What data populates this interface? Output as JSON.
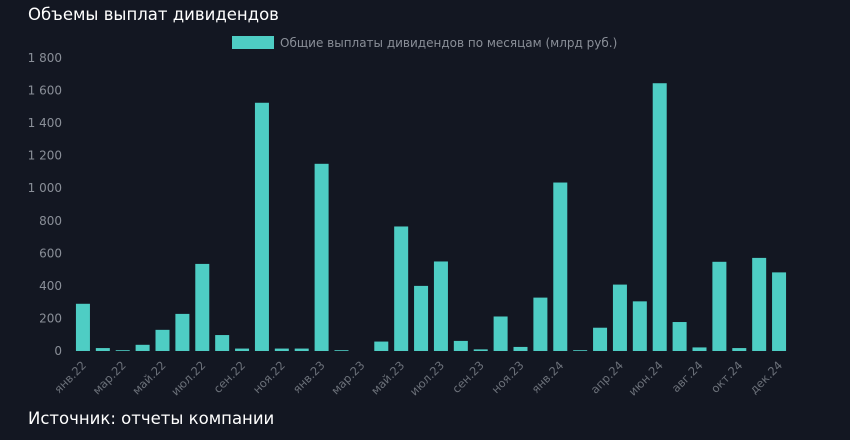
{
  "title": "Объемы выплат дивидендов",
  "source": "Источник: отчеты компании",
  "colors": {
    "background": "#131722",
    "bar": "#4ecdc4",
    "tick_text": "#8a8f98"
  },
  "chart_data": {
    "type": "bar",
    "legend": {
      "position": "top-center",
      "label": "Общие выплаты дивидендов по месяцам (млрд руб.)"
    },
    "grid": false,
    "ylim": [
      0,
      1800
    ],
    "yticks": [
      0,
      200,
      400,
      600,
      800,
      1000,
      1200,
      1400,
      1600,
      1800
    ],
    "ytick_labels": [
      "0",
      "200",
      "400",
      "600",
      "800",
      "1 000",
      "1 200",
      "1 400",
      "1 600",
      "1 800"
    ],
    "categories": [
      "янв.22",
      "фев.22",
      "мар.22",
      "апр.22",
      "май.22",
      "июн.22",
      "июл.22",
      "авг.22",
      "сен.22",
      "окт.22",
      "ноя.22",
      "дек.22",
      "янв.23",
      "фев.23",
      "мар.23",
      "апр.23",
      "май.23",
      "июн.23",
      "июл.23",
      "авг.23",
      "сен.23",
      "окт.23",
      "ноя.23",
      "дек.23",
      "янв.24",
      "фев.24",
      "мар.24",
      "апр.24",
      "май.24",
      "июн.24",
      "июл.24",
      "авг.24",
      "сен.24",
      "окт.24",
      "ноя.24",
      "дек.24"
    ],
    "xtick_labels": [
      "янв.22",
      "мар.22",
      "май.22",
      "июл.22",
      "сен.22",
      "ноя.22",
      "янв.23",
      "мар.23",
      "май.23",
      "июл.23",
      "сен.23",
      "ноя.23",
      "янв.24",
      "апр.24",
      "июн.24",
      "авг.24",
      "окт.24",
      "дек.24"
    ],
    "xtick_indices": [
      0,
      2,
      4,
      6,
      8,
      10,
      12,
      14,
      16,
      18,
      20,
      22,
      24,
      27,
      29,
      31,
      33,
      35
    ],
    "series": [
      {
        "name": "Общие выплаты дивидендов по месяцам (млрд руб.)",
        "values": [
          290,
          18,
          5,
          38,
          130,
          228,
          535,
          98,
          15,
          1525,
          15,
          15,
          1150,
          5,
          0,
          58,
          765,
          400,
          550,
          62,
          10,
          212,
          25,
          328,
          1035,
          5,
          143,
          408,
          305,
          1645,
          178,
          22,
          548,
          18,
          572,
          483
        ]
      }
    ]
  }
}
